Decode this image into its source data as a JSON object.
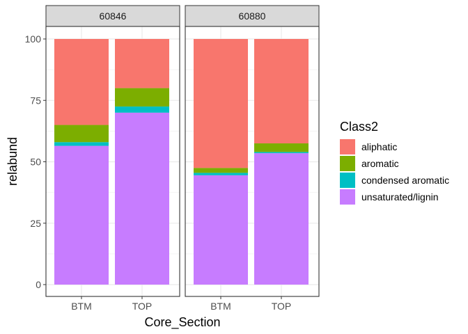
{
  "chart_data": {
    "type": "bar",
    "stacked": true,
    "faceted": true,
    "xlabel": "Core_Section",
    "ylabel": "relabund",
    "ylim": [
      0,
      100
    ],
    "yticks": [
      0,
      25,
      50,
      75,
      100
    ],
    "categories": [
      "BTM",
      "TOP"
    ],
    "legend": {
      "title": "Class2",
      "position": "right"
    },
    "series": [
      {
        "name": "unsaturated/lignin",
        "color": "#C77CFF"
      },
      {
        "name": "condensed aromatic",
        "color": "#00BFC4"
      },
      {
        "name": "aromatic",
        "color": "#7CAE00"
      },
      {
        "name": "aliphatic",
        "color": "#F8766D"
      }
    ],
    "legend_order": [
      "aliphatic",
      "aromatic",
      "condensed aromatic",
      "unsaturated/lignin"
    ],
    "facets": [
      {
        "label": "60846",
        "values": {
          "BTM": {
            "unsaturated/lignin": 56.5,
            "condensed aromatic": 1.5,
            "aromatic": 7,
            "aliphatic": 35
          },
          "TOP": {
            "unsaturated/lignin": 70,
            "condensed aromatic": 2.5,
            "aromatic": 7.5,
            "aliphatic": 20
          }
        }
      },
      {
        "label": "60880",
        "values": {
          "BTM": {
            "unsaturated/lignin": 44.5,
            "condensed aromatic": 1,
            "aromatic": 2,
            "aliphatic": 52.5
          },
          "TOP": {
            "unsaturated/lignin": 53.5,
            "condensed aromatic": 0.5,
            "aromatic": 3.5,
            "aliphatic": 42.5
          }
        }
      }
    ],
    "grid": true,
    "theme": "bw"
  }
}
